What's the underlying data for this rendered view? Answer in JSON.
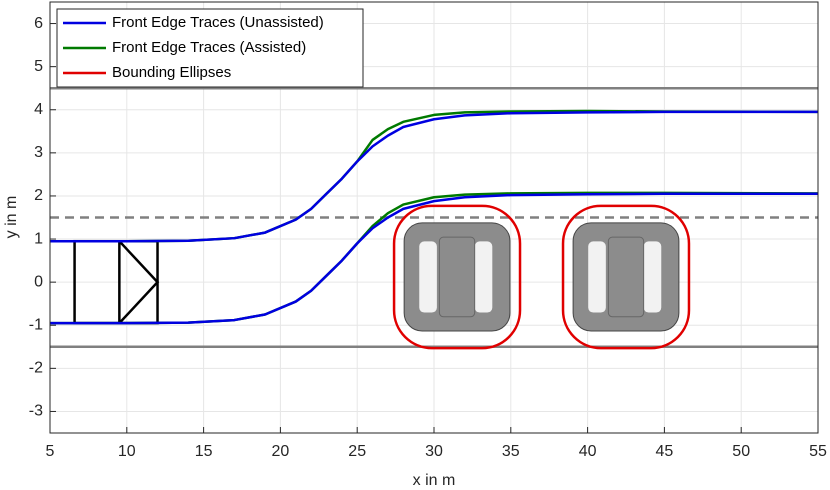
{
  "chart_data": {
    "type": "line",
    "xlabel": "x in m",
    "ylabel": "y in m",
    "xlim": [
      5,
      55
    ],
    "ylim": [
      -3.5,
      6.5
    ],
    "xticks": [
      5,
      10,
      15,
      20,
      25,
      30,
      35,
      40,
      45,
      50,
      55
    ],
    "yticks": [
      -3,
      -2,
      -1,
      0,
      1,
      2,
      3,
      4,
      5,
      6
    ],
    "grid": true,
    "legend": "upper-left",
    "x": [
      5,
      10,
      14,
      17,
      19,
      21,
      22,
      23,
      24,
      25,
      26,
      27,
      28,
      30,
      32,
      35,
      40,
      45,
      55
    ],
    "series": [
      {
        "name": "Front Edge Traces (Unassisted)",
        "color": "#0000e0",
        "values": [
          -0.95,
          -0.95,
          -0.94,
          -0.88,
          -0.75,
          -0.45,
          -0.2,
          0.15,
          0.5,
          0.9,
          1.25,
          1.5,
          1.7,
          1.88,
          1.97,
          2.02,
          2.04,
          2.05,
          2.05
        ]
      },
      {
        "color": "#0000e0",
        "values": [
          0.95,
          0.95,
          0.96,
          1.02,
          1.15,
          1.45,
          1.7,
          2.05,
          2.4,
          2.8,
          3.15,
          3.4,
          3.6,
          3.78,
          3.87,
          3.92,
          3.94,
          3.95,
          3.95
        ]
      },
      {
        "name": "Front Edge Traces (Assisted)",
        "color": "#007a00",
        "values": [
          -0.95,
          -0.95,
          -0.94,
          -0.88,
          -0.75,
          -0.45,
          -0.2,
          0.15,
          0.5,
          0.9,
          1.3,
          1.6,
          1.8,
          1.97,
          2.03,
          2.06,
          2.07,
          2.07,
          2.06
        ]
      },
      {
        "color": "#007a00",
        "values": [
          0.95,
          0.95,
          0.96,
          1.02,
          1.15,
          1.45,
          1.7,
          2.05,
          2.4,
          2.8,
          3.3,
          3.55,
          3.72,
          3.88,
          3.94,
          3.96,
          3.97,
          3.96,
          3.95
        ]
      }
    ],
    "ellipses": {
      "name": "Bounding Ellipses",
      "color": "#e00000",
      "items": [
        {
          "cx": 31.5,
          "cy": 0.12,
          "width": 8.2,
          "height": 3.3
        },
        {
          "cx": 42.5,
          "cy": 0.12,
          "width": 8.2,
          "height": 3.3
        }
      ]
    },
    "hlines": [
      {
        "y": 4.5,
        "style": "solid"
      },
      {
        "y": -1.5,
        "style": "solid"
      },
      {
        "y": 1.5,
        "style": "dashed"
      }
    ],
    "hline_color": "#808080",
    "ego_vehicle": {
      "x": [
        6.6,
        12
      ],
      "y": [
        -0.95,
        0.95
      ]
    }
  }
}
